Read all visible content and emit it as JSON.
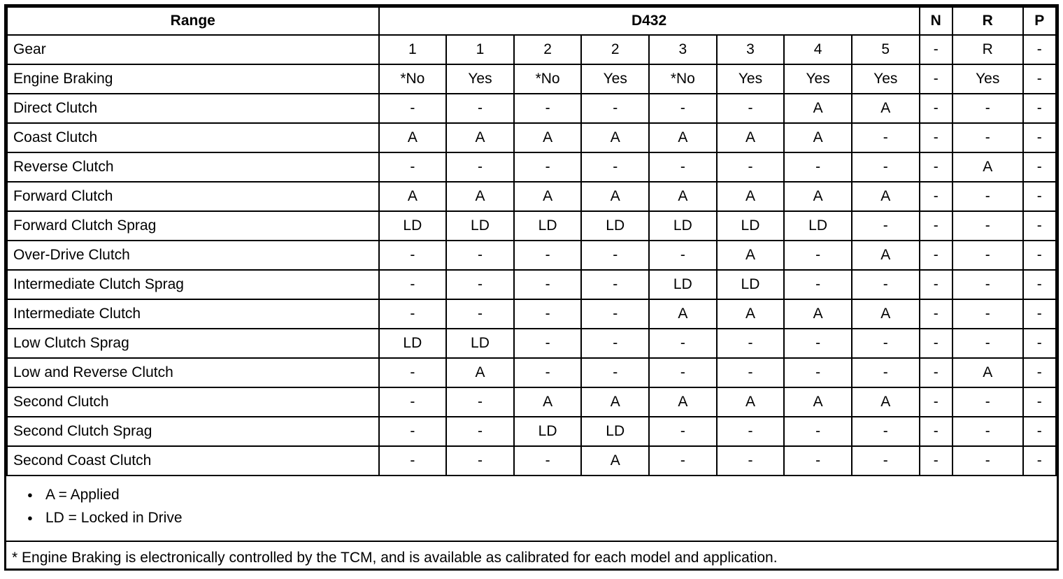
{
  "table": {
    "header": {
      "range_label": "Range",
      "group_label": "D432",
      "n_label": "N",
      "r_label": "R",
      "p_label": "P"
    },
    "rows": [
      {
        "label": "Gear",
        "values": [
          "1",
          "1",
          "2",
          "2",
          "3",
          "3",
          "4",
          "5",
          "-",
          "R",
          "-"
        ]
      },
      {
        "label": "Engine Braking",
        "values": [
          "*No",
          "Yes",
          "*No",
          "Yes",
          "*No",
          "Yes",
          "Yes",
          "Yes",
          "-",
          "Yes",
          "-"
        ]
      },
      {
        "label": "Direct Clutch",
        "values": [
          "-",
          "-",
          "-",
          "-",
          "-",
          "-",
          "A",
          "A",
          "-",
          "-",
          "-"
        ]
      },
      {
        "label": "Coast Clutch",
        "values": [
          "A",
          "A",
          "A",
          "A",
          "A",
          "A",
          "A",
          "-",
          "-",
          "-",
          "-"
        ]
      },
      {
        "label": "Reverse Clutch",
        "values": [
          "-",
          "-",
          "-",
          "-",
          "-",
          "-",
          "-",
          "-",
          "-",
          "A",
          "-"
        ]
      },
      {
        "label": "Forward Clutch",
        "values": [
          "A",
          "A",
          "A",
          "A",
          "A",
          "A",
          "A",
          "A",
          "-",
          "-",
          "-"
        ]
      },
      {
        "label": "Forward Clutch Sprag",
        "values": [
          "LD",
          "LD",
          "LD",
          "LD",
          "LD",
          "LD",
          "LD",
          "-",
          "-",
          "-",
          "-"
        ]
      },
      {
        "label": "Over-Drive Clutch",
        "values": [
          "-",
          "-",
          "-",
          "-",
          "-",
          "A",
          "-",
          "A",
          "-",
          "-",
          "-"
        ]
      },
      {
        "label": "Intermediate Clutch Sprag",
        "values": [
          "-",
          "-",
          "-",
          "-",
          "LD",
          "LD",
          "-",
          "-",
          "-",
          "-",
          "-"
        ]
      },
      {
        "label": "Intermediate Clutch",
        "values": [
          "-",
          "-",
          "-",
          "-",
          "A",
          "A",
          "A",
          "A",
          "-",
          "-",
          "-"
        ]
      },
      {
        "label": "Low Clutch Sprag",
        "values": [
          "LD",
          "LD",
          "-",
          "-",
          "-",
          "-",
          "-",
          "-",
          "-",
          "-",
          "-"
        ]
      },
      {
        "label": "Low and Reverse Clutch",
        "values": [
          "-",
          "A",
          "-",
          "-",
          "-",
          "-",
          "-",
          "-",
          "-",
          "A",
          "-"
        ]
      },
      {
        "label": "Second Clutch",
        "values": [
          "-",
          "-",
          "A",
          "A",
          "A",
          "A",
          "A",
          "A",
          "-",
          "-",
          "-"
        ]
      },
      {
        "label": "Second Clutch Sprag",
        "values": [
          "-",
          "-",
          "LD",
          "LD",
          "-",
          "-",
          "-",
          "-",
          "-",
          "-",
          "-"
        ]
      },
      {
        "label": "Second Coast Clutch",
        "values": [
          "-",
          "-",
          "-",
          "A",
          "-",
          "-",
          "-",
          "-",
          "-",
          "-",
          "-"
        ]
      }
    ],
    "notes": {
      "bullets": [
        "A = Applied",
        "LD = Locked in Drive"
      ],
      "footnote": "* Engine Braking is electronically controlled by the TCM, and is available as calibrated for each model and application."
    }
  }
}
